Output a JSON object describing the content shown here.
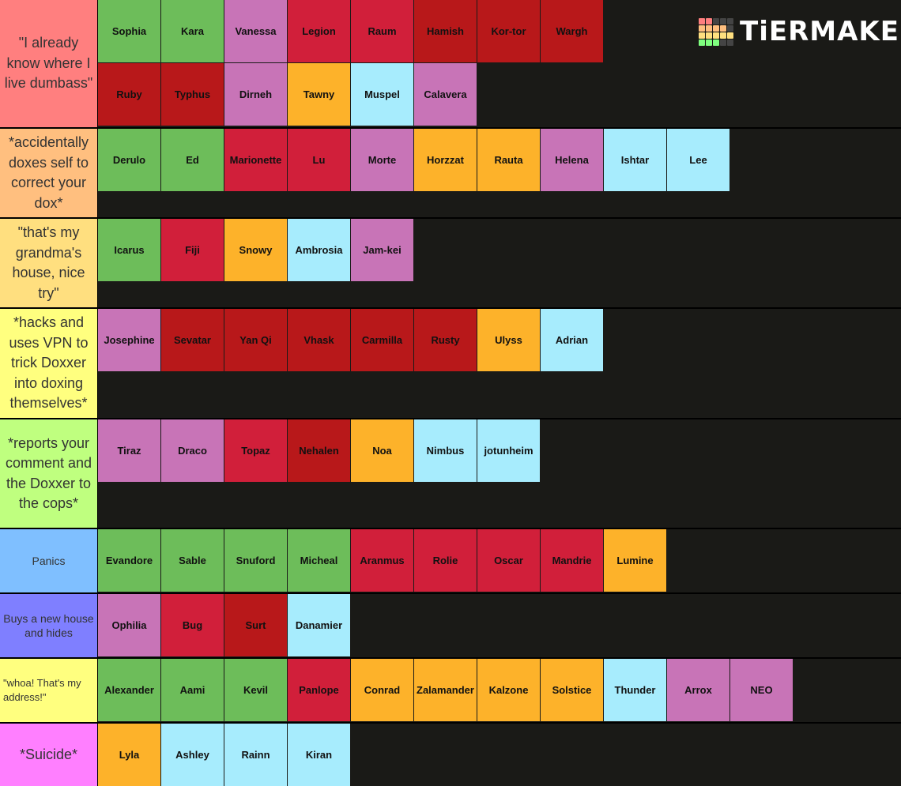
{
  "logo": "TiERMAKER",
  "tiers": [
    {
      "label": "\"I already know where I live dumbass\"",
      "color": "#ff7f7f",
      "items": [
        {
          "name": "Sophia",
          "color": "#6dbd5a"
        },
        {
          "name": "Kara",
          "color": "#6dbd5a"
        },
        {
          "name": "Vanessa",
          "color": "#c874b7"
        },
        {
          "name": "Legion",
          "color": "#d11f3a"
        },
        {
          "name": "Raum",
          "color": "#d11f3a"
        },
        {
          "name": "Hamish",
          "color": "#b8181a"
        },
        {
          "name": "Kor-tor",
          "color": "#b8181a"
        },
        {
          "name": "Wargh",
          "color": "#b8181a"
        },
        {
          "name": "Ruby",
          "color": "#b8181a"
        },
        {
          "name": "Typhus",
          "color": "#b8181a"
        },
        {
          "name": "Dirneh",
          "color": "#c874b7"
        },
        {
          "name": "Tawny",
          "color": "#fdb22a"
        },
        {
          "name": "Muspel",
          "color": "#a7ecfd"
        },
        {
          "name": "Calavera",
          "color": "#c874b7"
        }
      ]
    },
    {
      "label": "*accidentally doxes self to correct your dox*",
      "color": "#ffbf7f",
      "items": [
        {
          "name": "Derulo",
          "color": "#6dbd5a"
        },
        {
          "name": "Ed",
          "color": "#6dbd5a"
        },
        {
          "name": "Marionette",
          "color": "#d11f3a"
        },
        {
          "name": "Lu",
          "color": "#d11f3a"
        },
        {
          "name": "Morte",
          "color": "#c874b7"
        },
        {
          "name": "Horzzat",
          "color": "#fdb22a"
        },
        {
          "name": "Rauta",
          "color": "#fdb22a"
        },
        {
          "name": "Helena",
          "color": "#c874b7"
        },
        {
          "name": "Ishtar",
          "color": "#a7ecfd"
        },
        {
          "name": "Lee",
          "color": "#a7ecfd"
        }
      ]
    },
    {
      "label": "\"that's my grandma's house, nice try\"",
      "color": "#ffdf7f",
      "items": [
        {
          "name": "Icarus",
          "color": "#6dbd5a"
        },
        {
          "name": "Fiji",
          "color": "#d11f3a"
        },
        {
          "name": "Snowy",
          "color": "#fdb22a"
        },
        {
          "name": "Ambrosia",
          "color": "#a7ecfd"
        },
        {
          "name": "Jam-kei",
          "color": "#c874b7"
        }
      ]
    },
    {
      "label": "*hacks and uses VPN to trick Doxxer into doxing themselves*",
      "color": "#ffff7f",
      "items": [
        {
          "name": "Josephine",
          "color": "#c874b7"
        },
        {
          "name": "Sevatar",
          "color": "#b8181a"
        },
        {
          "name": "Yan Qi",
          "color": "#b8181a"
        },
        {
          "name": "Vhask",
          "color": "#b8181a"
        },
        {
          "name": "Carmilla",
          "color": "#b8181a"
        },
        {
          "name": "Rusty",
          "color": "#b8181a"
        },
        {
          "name": "Ulyss",
          "color": "#fdb22a"
        },
        {
          "name": "Adrian",
          "color": "#a7ecfd"
        }
      ]
    },
    {
      "label": "*reports your comment and the Doxxer to the cops*",
      "color": "#bfff7f",
      "items": [
        {
          "name": "Tiraz",
          "color": "#c874b7"
        },
        {
          "name": "Draco",
          "color": "#c874b7"
        },
        {
          "name": "Topaz",
          "color": "#d11f3a"
        },
        {
          "name": "Nehalen",
          "color": "#b8181a"
        },
        {
          "name": "Noa",
          "color": "#fdb22a"
        },
        {
          "name": "Nimbus",
          "color": "#a7ecfd"
        },
        {
          "name": "jotunheim",
          "color": "#a7ecfd"
        }
      ]
    },
    {
      "label": "Panics",
      "color": "#7fbfff",
      "items": [
        {
          "name": "Evandore",
          "color": "#6dbd5a"
        },
        {
          "name": "Sable",
          "color": "#6dbd5a"
        },
        {
          "name": "Snuford",
          "color": "#6dbd5a"
        },
        {
          "name": "Micheal",
          "color": "#6dbd5a"
        },
        {
          "name": "Aranmus",
          "color": "#d11f3a"
        },
        {
          "name": "Rolie",
          "color": "#d11f3a"
        },
        {
          "name": "Oscar",
          "color": "#d11f3a"
        },
        {
          "name": "Mandrie",
          "color": "#d11f3a"
        },
        {
          "name": "Lumine",
          "color": "#fdb22a"
        }
      ]
    },
    {
      "label": "Buys a new house and   hides",
      "color": "#7f7fff",
      "items": [
        {
          "name": "Ophilia",
          "color": "#c874b7"
        },
        {
          "name": "Bug",
          "color": "#d11f3a"
        },
        {
          "name": "Surt",
          "color": "#b8181a"
        },
        {
          "name": "Danamier",
          "color": "#a7ecfd"
        }
      ]
    },
    {
      "label": "\"whoa! That's my address!\"",
      "color": "#ffff7f",
      "items": [
        {
          "name": "Alexander",
          "color": "#6dbd5a"
        },
        {
          "name": "Aami",
          "color": "#6dbd5a"
        },
        {
          "name": "Kevil",
          "color": "#6dbd5a"
        },
        {
          "name": "Panlope",
          "color": "#d11f3a"
        },
        {
          "name": "Conrad",
          "color": "#fdb22a"
        },
        {
          "name": "Zalamander",
          "color": "#fdb22a"
        },
        {
          "name": "Kalzone",
          "color": "#fdb22a"
        },
        {
          "name": "Solstice",
          "color": "#fdb22a"
        },
        {
          "name": "Thunder",
          "color": "#a7ecfd"
        },
        {
          "name": "Arrox",
          "color": "#c874b7"
        },
        {
          "name": "NEO",
          "color": "#c874b7"
        }
      ]
    },
    {
      "label": "*Suicide*",
      "color": "#ff7fff",
      "items": [
        {
          "name": "Lyla",
          "color": "#fdb22a"
        },
        {
          "name": "Ashley",
          "color": "#a7ecfd"
        },
        {
          "name": "Rainn",
          "color": "#a7ecfd"
        },
        {
          "name": "Kiran",
          "color": "#a7ecfd"
        }
      ]
    }
  ]
}
